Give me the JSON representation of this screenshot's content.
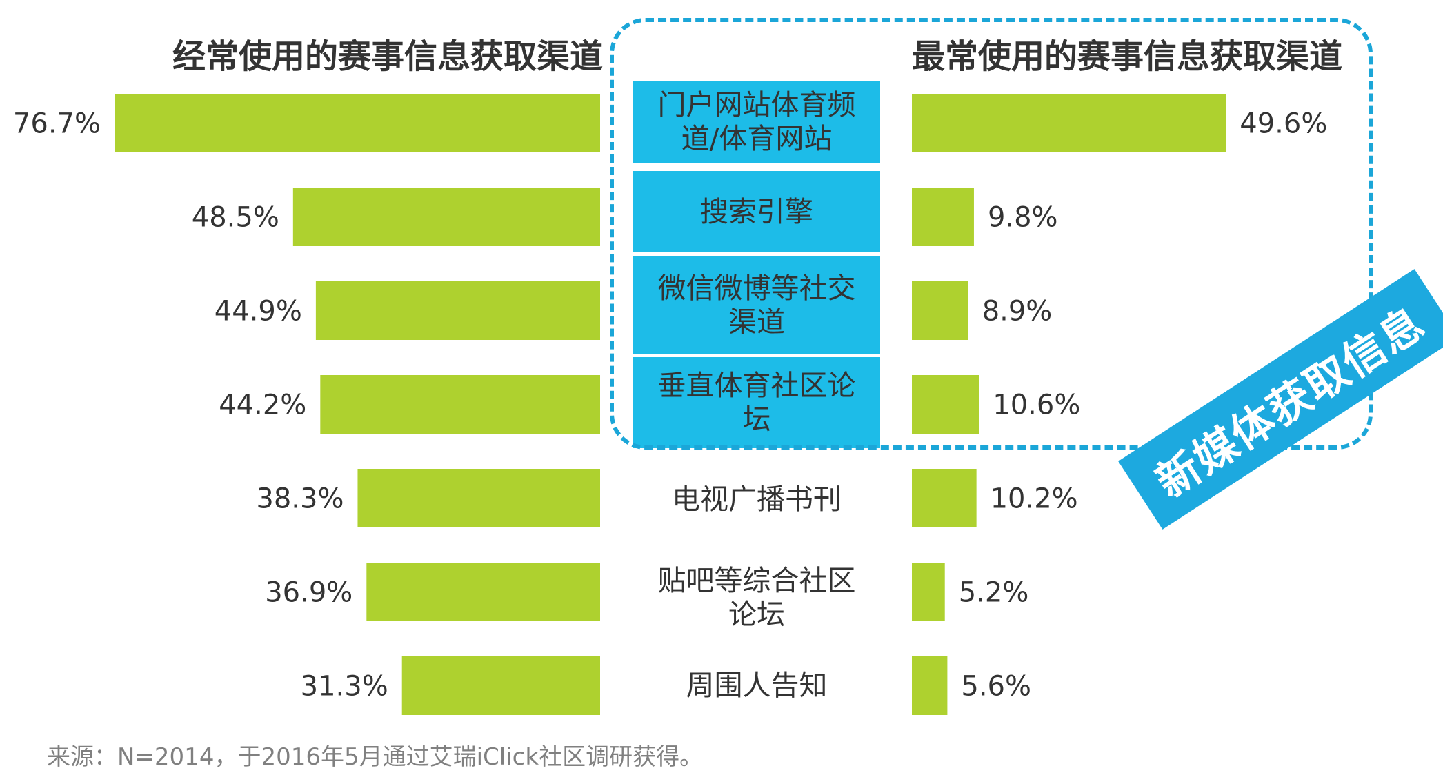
{
  "chart_data": [
    {
      "type": "bar",
      "orientation": "horizontal",
      "title": "经常使用的赛事信息获取渠道",
      "categories": [
        "门户网站体育频道/体育网站",
        "搜索引擎",
        "微信微博等社交渠道",
        "垂直体育社区论坛",
        "电视广播书刊",
        "贴吧等综合社区论坛",
        "周围人告知"
      ],
      "values": [
        76.7,
        48.5,
        44.9,
        44.2,
        38.3,
        36.9,
        31.3
      ],
      "value_labels": [
        "76.7%",
        "48.5%",
        "44.9%",
        "44.2%",
        "38.3%",
        "36.9%",
        "31.3%"
      ],
      "unit": "%",
      "direction": "leftward"
    },
    {
      "type": "bar",
      "orientation": "horizontal",
      "title": "最常使用的赛事信息获取渠道",
      "categories": [
        "门户网站体育频道/体育网站",
        "搜索引擎",
        "微信微博等社交渠道",
        "垂直体育社区论坛",
        "电视广播书刊",
        "贴吧等综合社区论坛",
        "周围人告知"
      ],
      "values": [
        49.6,
        9.8,
        8.9,
        10.6,
        10.2,
        5.2,
        5.6
      ],
      "value_labels": [
        "49.6%",
        "9.8%",
        "8.9%",
        "10.6%",
        "10.2%",
        "5.2%",
        "5.6%"
      ],
      "unit": "%",
      "direction": "rightward"
    }
  ],
  "categories_display": [
    {
      "lines": [
        "门户网站体育频",
        "道/体育网站"
      ],
      "highlighted": true
    },
    {
      "lines": [
        "搜索引擎"
      ],
      "highlighted": true
    },
    {
      "lines": [
        "微信微博等社交",
        "渠道"
      ],
      "highlighted": true
    },
    {
      "lines": [
        "垂直体育社区论",
        "坛"
      ],
      "highlighted": true
    },
    {
      "lines": [
        "电视广播书刊"
      ],
      "highlighted": false
    },
    {
      "lines": [
        "贴吧等综合社区",
        "论坛"
      ],
      "highlighted": false
    },
    {
      "lines": [
        "周围人告知"
      ],
      "highlighted": false
    }
  ],
  "annotation": {
    "text": "新媒体获取信息"
  },
  "source": "来源：N=2014，于2016年5月通过艾瑞iClick社区调研获得。",
  "colors": {
    "bar": "#aed12f",
    "highlight_box": "#1dbce8",
    "dashed_frame": "#1ba6d8",
    "banner": "#1da9df",
    "text": "#333333",
    "source_text": "#808080"
  }
}
